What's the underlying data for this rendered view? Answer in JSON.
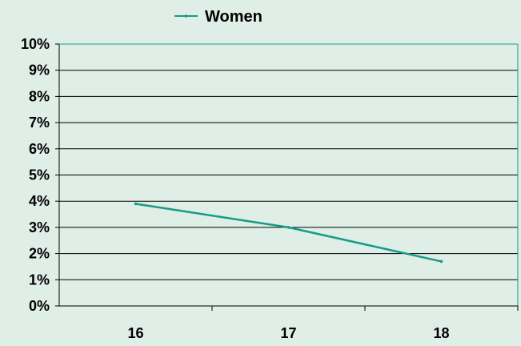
{
  "chart_data": {
    "type": "line",
    "categories": [
      "16",
      "17",
      "18"
    ],
    "series": [
      {
        "name": "Women",
        "values": [
          3.9,
          3.0,
          1.7
        ],
        "color": "#1a9a88"
      }
    ],
    "y_ticks": [
      "0%",
      "1%",
      "2%",
      "3%",
      "4%",
      "5%",
      "6%",
      "7%",
      "8%",
      "9%",
      "10%"
    ],
    "ylim": [
      0,
      10
    ],
    "grid": true,
    "legend_position": "top",
    "plot_background": "#dfeee7",
    "gridline_color": "#000000"
  }
}
